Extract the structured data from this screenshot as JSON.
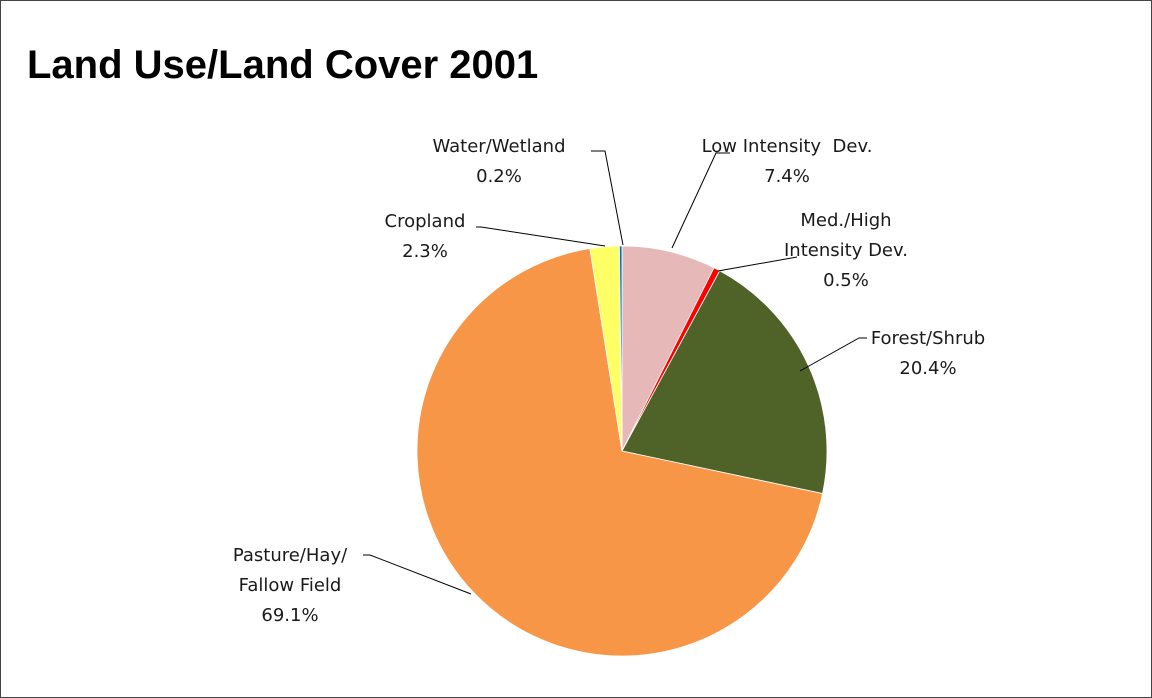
{
  "chart_data": {
    "type": "pie",
    "title": "Land Use/Land Cover 2001",
    "slices": [
      {
        "name": "Low Intensity  Dev.",
        "lines": [
          "Low Intensity  Dev.",
          "7.4%"
        ],
        "value": 7.4,
        "color": "#E6B8B7"
      },
      {
        "name": "Med./High Intensity Dev.",
        "lines": [
          "Med./High",
          "Intensity Dev.",
          "0.5%"
        ],
        "value": 0.5,
        "color": "#FF0000"
      },
      {
        "name": "Forest/Shrub",
        "lines": [
          "Forest/Shrub",
          "20.4%"
        ],
        "value": 20.4,
        "color": "#4F6228"
      },
      {
        "name": "Pasture/Hay/ Fallow Field",
        "lines": [
          "Pasture/Hay/",
          "Fallow Field",
          "69.1%"
        ],
        "value": 69.1,
        "color": "#F79646"
      },
      {
        "name": "Cropland",
        "lines": [
          "Cropland",
          "2.3%"
        ],
        "value": 2.3,
        "color": "#FFFF66"
      },
      {
        "name": "Water/Wetland",
        "lines": [
          "Water/Wetland",
          "0.2%"
        ],
        "value": 0.2,
        "color": "#0070C0"
      }
    ],
    "start_angle": "12 o'clock",
    "direction": "clockwise",
    "legend": "none"
  }
}
